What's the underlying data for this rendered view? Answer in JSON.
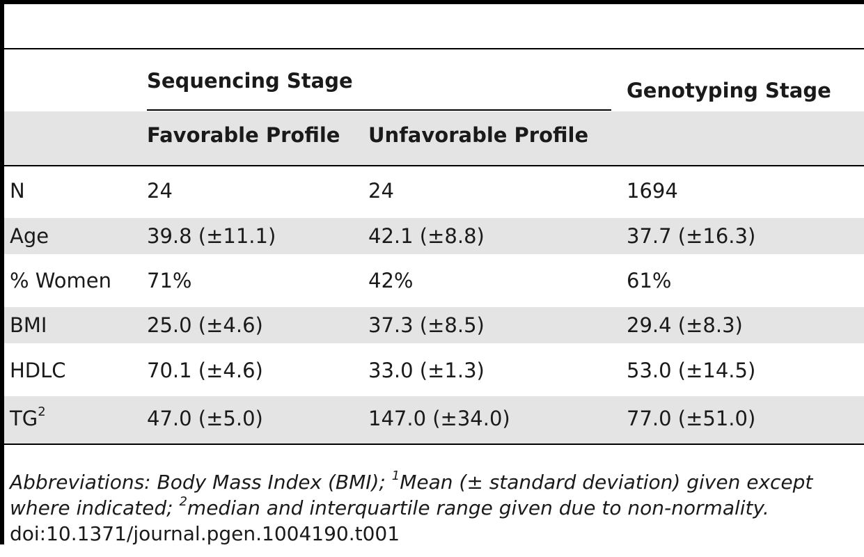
{
  "table": {
    "group_headers": {
      "sequencing": "Sequencing Stage",
      "genotyping": "Genotyping Stage"
    },
    "sub_headers": {
      "favorable": "Favorable Profile",
      "unfavorable": "Unfavorable Profile"
    },
    "rows": [
      {
        "label": "N",
        "label_sup": "",
        "favorable": "24",
        "unfavorable": "24",
        "genotyping": "1694"
      },
      {
        "label": "Age",
        "label_sup": "",
        "favorable": "39.8 (±11.1)",
        "unfavorable": "42.1 (±8.8)",
        "genotyping": "37.7 (±16.3)"
      },
      {
        "label": "% Women",
        "label_sup": "",
        "favorable": "71%",
        "unfavorable": "42%",
        "genotyping": "61%"
      },
      {
        "label": "BMI",
        "label_sup": "",
        "favorable": "25.0 (±4.6)",
        "unfavorable": "37.3 (±8.5)",
        "genotyping": "29.4 (±8.3)"
      },
      {
        "label": "HDLC",
        "label_sup": "",
        "favorable": "70.1 (±4.6)",
        "unfavorable": "33.0 (±1.3)",
        "genotyping": "53.0 (±14.5)"
      },
      {
        "label": "TG",
        "label_sup": "2",
        "favorable": "47.0 (±5.0)",
        "unfavorable": "147.0 (±34.0)",
        "genotyping": "77.0 (±51.0)"
      }
    ]
  },
  "footnotes": {
    "abbrev": "Abbreviations: Body Mass Index (BMI); ",
    "note1_sup": "1",
    "note1": "Mean (± standard deviation) given except",
    "note1_cont": "where indicated; ",
    "note2_sup": "2",
    "note2": "median and interquartile range given due to non-normality.",
    "doi": "doi:10.1371/journal.pgen.1004190.t001"
  }
}
